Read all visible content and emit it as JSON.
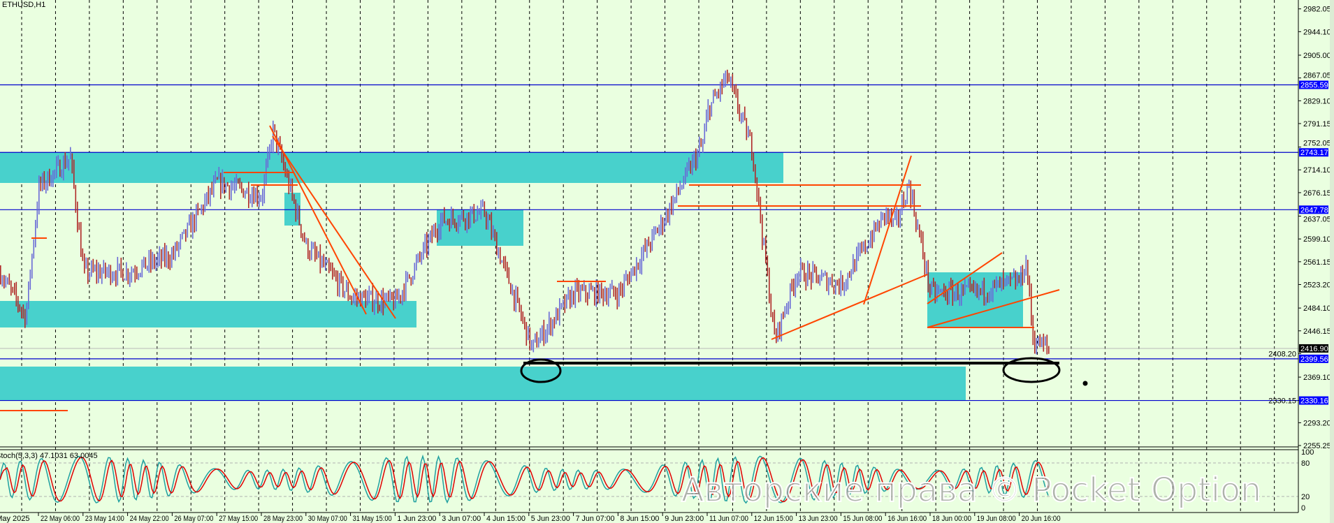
{
  "header": {
    "symbol_label": "ETHUSD,H1"
  },
  "indicator": {
    "label": "Stoch(5,3,3) 47.1031 63.0045",
    "levels": [
      "100",
      "80",
      "20",
      "0"
    ]
  },
  "watermark": "Авторские права © Pocket Option",
  "colors": {
    "background": "#eaffe0",
    "bull_bar": "#6a6ad6",
    "bear_bar": "#b02828",
    "zone": "#48d1cc",
    "level_line": "#0000cc",
    "level_tag": "#0000ff",
    "trendline": "#ff4500",
    "stoch_main": "#20a0a0",
    "stoch_signal": "#e00000"
  },
  "chart_data": {
    "type": "candlestick",
    "title": "ETHUSD,H1",
    "x_tick_labels": [
      "May 2025",
      "22 May 06:00",
      "23 May 14:00",
      "24 May 22:00",
      "26 May 07:00",
      "27 May 15:00",
      "28 May 23:00",
      "30 May 07:00",
      "31 May 15:00",
      "1 Jun 23:00",
      "3 Jun 07:00",
      "4 Jun 15:00",
      "5 Jun 23:00",
      "7 Jun 07:00",
      "8 Jun 15:00",
      "9 Jun 23:00",
      "11 Jun 07:00",
      "12 Jun 15:00",
      "13 Jun 23:00",
      "15 Jun 08:00",
      "16 Jun 16:00",
      "18 Jun 00:00",
      "19 Jun 08:00",
      "20 Jun 16:00"
    ],
    "approx_close_at_ticks": [
      2560,
      2685,
      2544,
      2544,
      2572,
      2693,
      2671,
      2586,
      2502,
      2494,
      2629,
      2643,
      2431,
      2509,
      2509,
      2629,
      2813,
      2749,
      2544,
      2523,
      2643,
      2509,
      2509,
      2530
    ],
    "last_price": 2416.9,
    "period_high": 2869,
    "period_low": 2417,
    "y_tick_labels": [
      "2982.05",
      "2944.10",
      "2905.00",
      "2867.05",
      "2829.10",
      "2791.15",
      "2752.05",
      "2714.10",
      "2676.15",
      "2637.05",
      "2599.10",
      "2561.15",
      "2523.20",
      "2484.10",
      "2446.15",
      "2408.20",
      "2369.10",
      "2330.15",
      "2293.20",
      "2255.25"
    ],
    "ylim": [
      2255.25,
      2982.05
    ],
    "horizontal_levels": [
      "2855.59",
      "2743.17",
      "2647.78",
      "2399.56",
      "2330.16"
    ],
    "current_price_tag": "2416.90",
    "grid": true
  }
}
